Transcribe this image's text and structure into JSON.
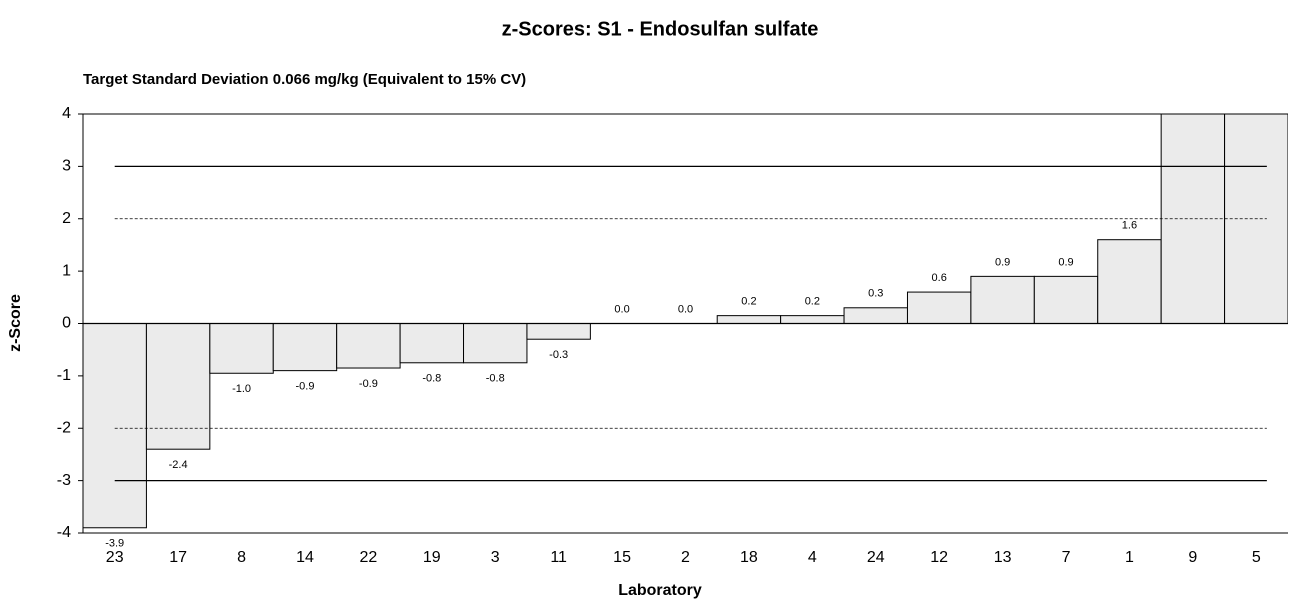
{
  "chart_data": {
    "type": "bar",
    "title": "z-Scores: S1 - Endosulfan sulfate",
    "subtitle": "Target Standard Deviation 0.066 mg/kg  (Equivalent to 15% CV)",
    "x_label": "Laboratory",
    "y_label": "z-Score",
    "categories": [
      "23",
      "17",
      "8",
      "14",
      "22",
      "19",
      "3",
      "11",
      "15",
      "2",
      "18",
      "4",
      "24",
      "12",
      "13",
      "7",
      "1",
      "9",
      "5"
    ],
    "values": [
      -3.9,
      -2.4,
      -0.95,
      -0.9,
      -0.85,
      -0.75,
      -0.75,
      -0.3,
      0.0,
      0.0,
      0.15,
      0.15,
      0.3,
      0.6,
      0.9,
      0.9,
      1.6,
      4.5,
      4.5
    ],
    "value_labels": [
      "-3.9",
      "-2.4",
      "-1.0",
      "-0.9",
      "-0.9",
      "-0.8",
      "-0.8",
      "-0.3",
      "0.0",
      "0.0",
      "0.2",
      "0.2",
      "0.3",
      "0.6",
      "0.9",
      "0.9",
      "1.6",
      null,
      null
    ],
    "color": "#ebebeb",
    "ylim": [
      -4,
      4
    ],
    "yticks": [
      -4,
      -3,
      -2,
      -1,
      0,
      1,
      2,
      3,
      4
    ],
    "reference_lines": [
      {
        "value": 3,
        "style": "solid"
      },
      {
        "value": -3,
        "style": "solid"
      },
      {
        "value": 2,
        "style": "dashed"
      },
      {
        "value": -2,
        "style": "dashed"
      }
    ]
  }
}
